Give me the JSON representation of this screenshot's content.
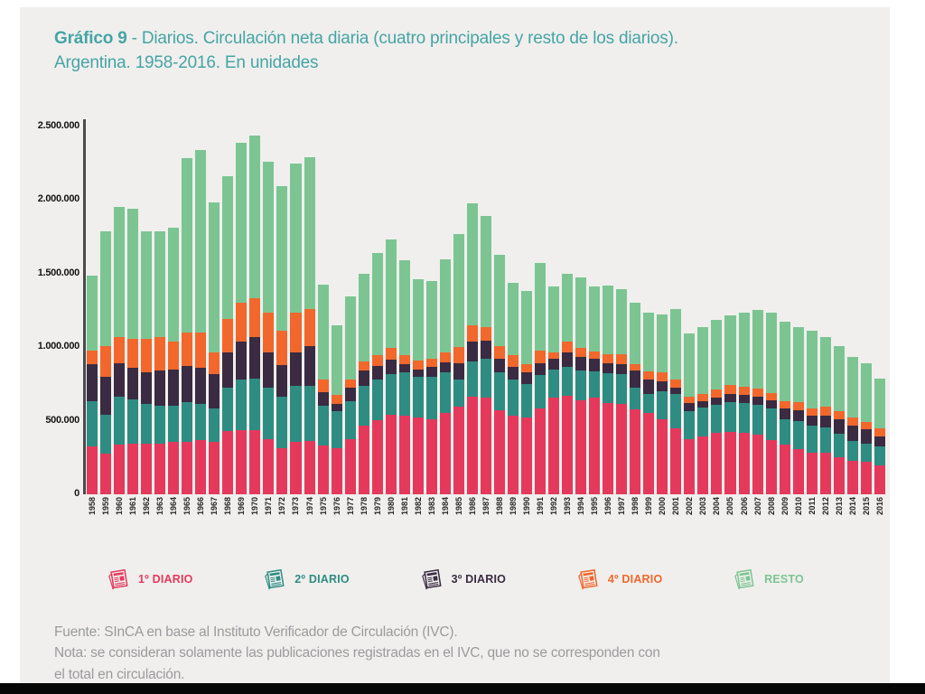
{
  "title": {
    "bold": "Gráfico 9",
    "line1_rest": " - Diarios. Circulación neta diaria (cuatro principales y resto de los diarios).",
    "line2": "Argentina. 1958-2016. En unidades"
  },
  "chart_data": {
    "type": "bar",
    "stacked": true,
    "title": "Gráfico 9 - Diarios. Circulación neta diaria (cuatro principales y resto de los diarios). Argentina. 1958-2016. En unidades",
    "xlabel": "",
    "ylabel": "",
    "ylim": [
      0,
      2500000
    ],
    "grid": false,
    "legend_position": "bottom",
    "ytick_values": [
      0,
      500000,
      1000000,
      1500000,
      2000000,
      2500000
    ],
    "ytick_labels": [
      "0",
      "500.000",
      "1.000.000",
      "1.500.000",
      "2.000.000",
      "2.500.000"
    ],
    "x": [
      1958,
      1959,
      1960,
      1961,
      1962,
      1963,
      1964,
      1965,
      1966,
      1967,
      1968,
      1969,
      1970,
      1971,
      1972,
      1973,
      1974,
      1975,
      1976,
      1977,
      1978,
      1979,
      1980,
      1981,
      1982,
      1983,
      1984,
      1985,
      1986,
      1987,
      1988,
      1989,
      1990,
      1991,
      1992,
      1993,
      1994,
      1995,
      1996,
      1997,
      1998,
      1999,
      2000,
      2001,
      2002,
      2003,
      2004,
      2005,
      2006,
      2007,
      2008,
      2009,
      2010,
      2011,
      2012,
      2013,
      2014,
      2015,
      2016
    ],
    "series": [
      {
        "name": "1º DIARIO",
        "color": "#e5395c",
        "values": [
          326000,
          274000,
          336000,
          346000,
          346000,
          346000,
          357000,
          357000,
          367000,
          357000,
          429000,
          439000,
          439000,
          377000,
          315000,
          357000,
          363000,
          330000,
          315000,
          377000,
          470000,
          501000,
          542000,
          532000,
          521000,
          511000,
          552000,
          598000,
          666000,
          660000,
          573000,
          536000,
          521000,
          583000,
          660000,
          672000,
          639000,
          655000,
          618000,
          614000,
          577000,
          556000,
          511000,
          449000,
          377000,
          392000,
          418000,
          425000,
          418000,
          404000,
          371000,
          336000,
          309000,
          280000,
          280000,
          253000,
          227000,
          223000,
          198000
        ]
      },
      {
        "name": "2º DIARIO",
        "color": "#2e8c83",
        "values": [
          309000,
          268000,
          330000,
          299000,
          268000,
          258000,
          247000,
          268000,
          247000,
          226000,
          299000,
          340000,
          350000,
          351000,
          351000,
          381000,
          375000,
          274000,
          248000,
          258000,
          268000,
          278000,
          278000,
          298000,
          279000,
          289000,
          278000,
          181000,
          237000,
          259000,
          257000,
          243000,
          227000,
          227000,
          191000,
          194000,
          202000,
          182000,
          206000,
          202000,
          151000,
          124000,
          190000,
          231000,
          186000,
          197000,
          192000,
          199000,
          200000,
          206000,
          212000,
          175000,
          186000,
          190000,
          173000,
          159000,
          136000,
          119000,
          128000
        ]
      },
      {
        "name": "3º DIARIO",
        "color": "#3a2b42",
        "values": [
          251000,
          258000,
          226000,
          216000,
          216000,
          237000,
          247000,
          247000,
          247000,
          237000,
          237000,
          258000,
          279000,
          237000,
          212000,
          227000,
          268000,
          93000,
          51000,
          93000,
          103000,
          93000,
          93000,
          56000,
          51000,
          66000,
          68000,
          113000,
          134000,
          128000,
          89000,
          87000,
          82000,
          82000,
          68000,
          99000,
          93000,
          86000,
          68000,
          70000,
          113000,
          103000,
          68000,
          48000,
          55000,
          42000,
          50000,
          56000,
          58000,
          56000,
          56000,
          72000,
          74000,
          66000,
          79000,
          99000,
          103000,
          103000,
          66000
        ]
      },
      {
        "name": "4º DIARIO",
        "color": "#f2672c",
        "values": [
          93000,
          206000,
          176000,
          196000,
          227000,
          227000,
          186000,
          226000,
          237000,
          145000,
          226000,
          268000,
          268000,
          267000,
          235000,
          267000,
          251000,
          82000,
          62000,
          51000,
          62000,
          72000,
          82000,
          58000,
          56000,
          57000,
          67000,
          110000,
          113000,
          93000,
          91000,
          78000,
          52000,
          83000,
          46000,
          72000,
          61000,
          46000,
          62000,
          68000,
          45000,
          54000,
          61000,
          55000,
          48000,
          49000,
          53000,
          62000,
          52000,
          55000,
          47000,
          48000,
          55000,
          47000,
          66000,
          52000,
          55000,
          45000,
          57000
        ]
      },
      {
        "name": "RESTO",
        "color": "#7cc593",
        "values": [
          507000,
          783000,
          886000,
          887000,
          732000,
          717000,
          773000,
          1186000,
          1243000,
          1020000,
          969000,
          1082000,
          1102000,
          1031000,
          979000,
          1014000,
          1037000,
          649000,
          474000,
          567000,
          597000,
          696000,
          736000,
          649000,
          556000,
          530000,
          632000,
          766000,
          831000,
          752000,
          618000,
          494000,
          499000,
          597000,
          449000,
          463000,
          481000,
          445000,
          464000,
          439000,
          418000,
          400000,
          392000,
          474000,
          426000,
          454000,
          474000,
          474000,
          509000,
          532000,
          546000,
          544000,
          510000,
          530000,
          470000,
          443000,
          413000,
          402000,
          340000
        ]
      }
    ]
  },
  "legend": {
    "items": [
      {
        "label": "1º DIARIO",
        "color": "#e5395c",
        "icon": "newspaper-icon"
      },
      {
        "label": "2º DIARIO",
        "color": "#2e8c83",
        "icon": "newspaper-icon"
      },
      {
        "label": "3º DIARIO",
        "color": "#3a2b42",
        "icon": "newspaper-icon"
      },
      {
        "label": "4º DIARIO",
        "color": "#f2672c",
        "icon": "newspaper-icon"
      },
      {
        "label": "RESTO",
        "color": "#7cc593",
        "icon": "newspaper-icon"
      }
    ]
  },
  "footer": {
    "lines": [
      "Fuente: SInCA en base al Instituto Verificador de Circulación (IVC).",
      "Nota: se consideran solamente las publicaciones registradas en el IVC, que no se corresponden con",
      "el total  en circulación."
    ]
  }
}
